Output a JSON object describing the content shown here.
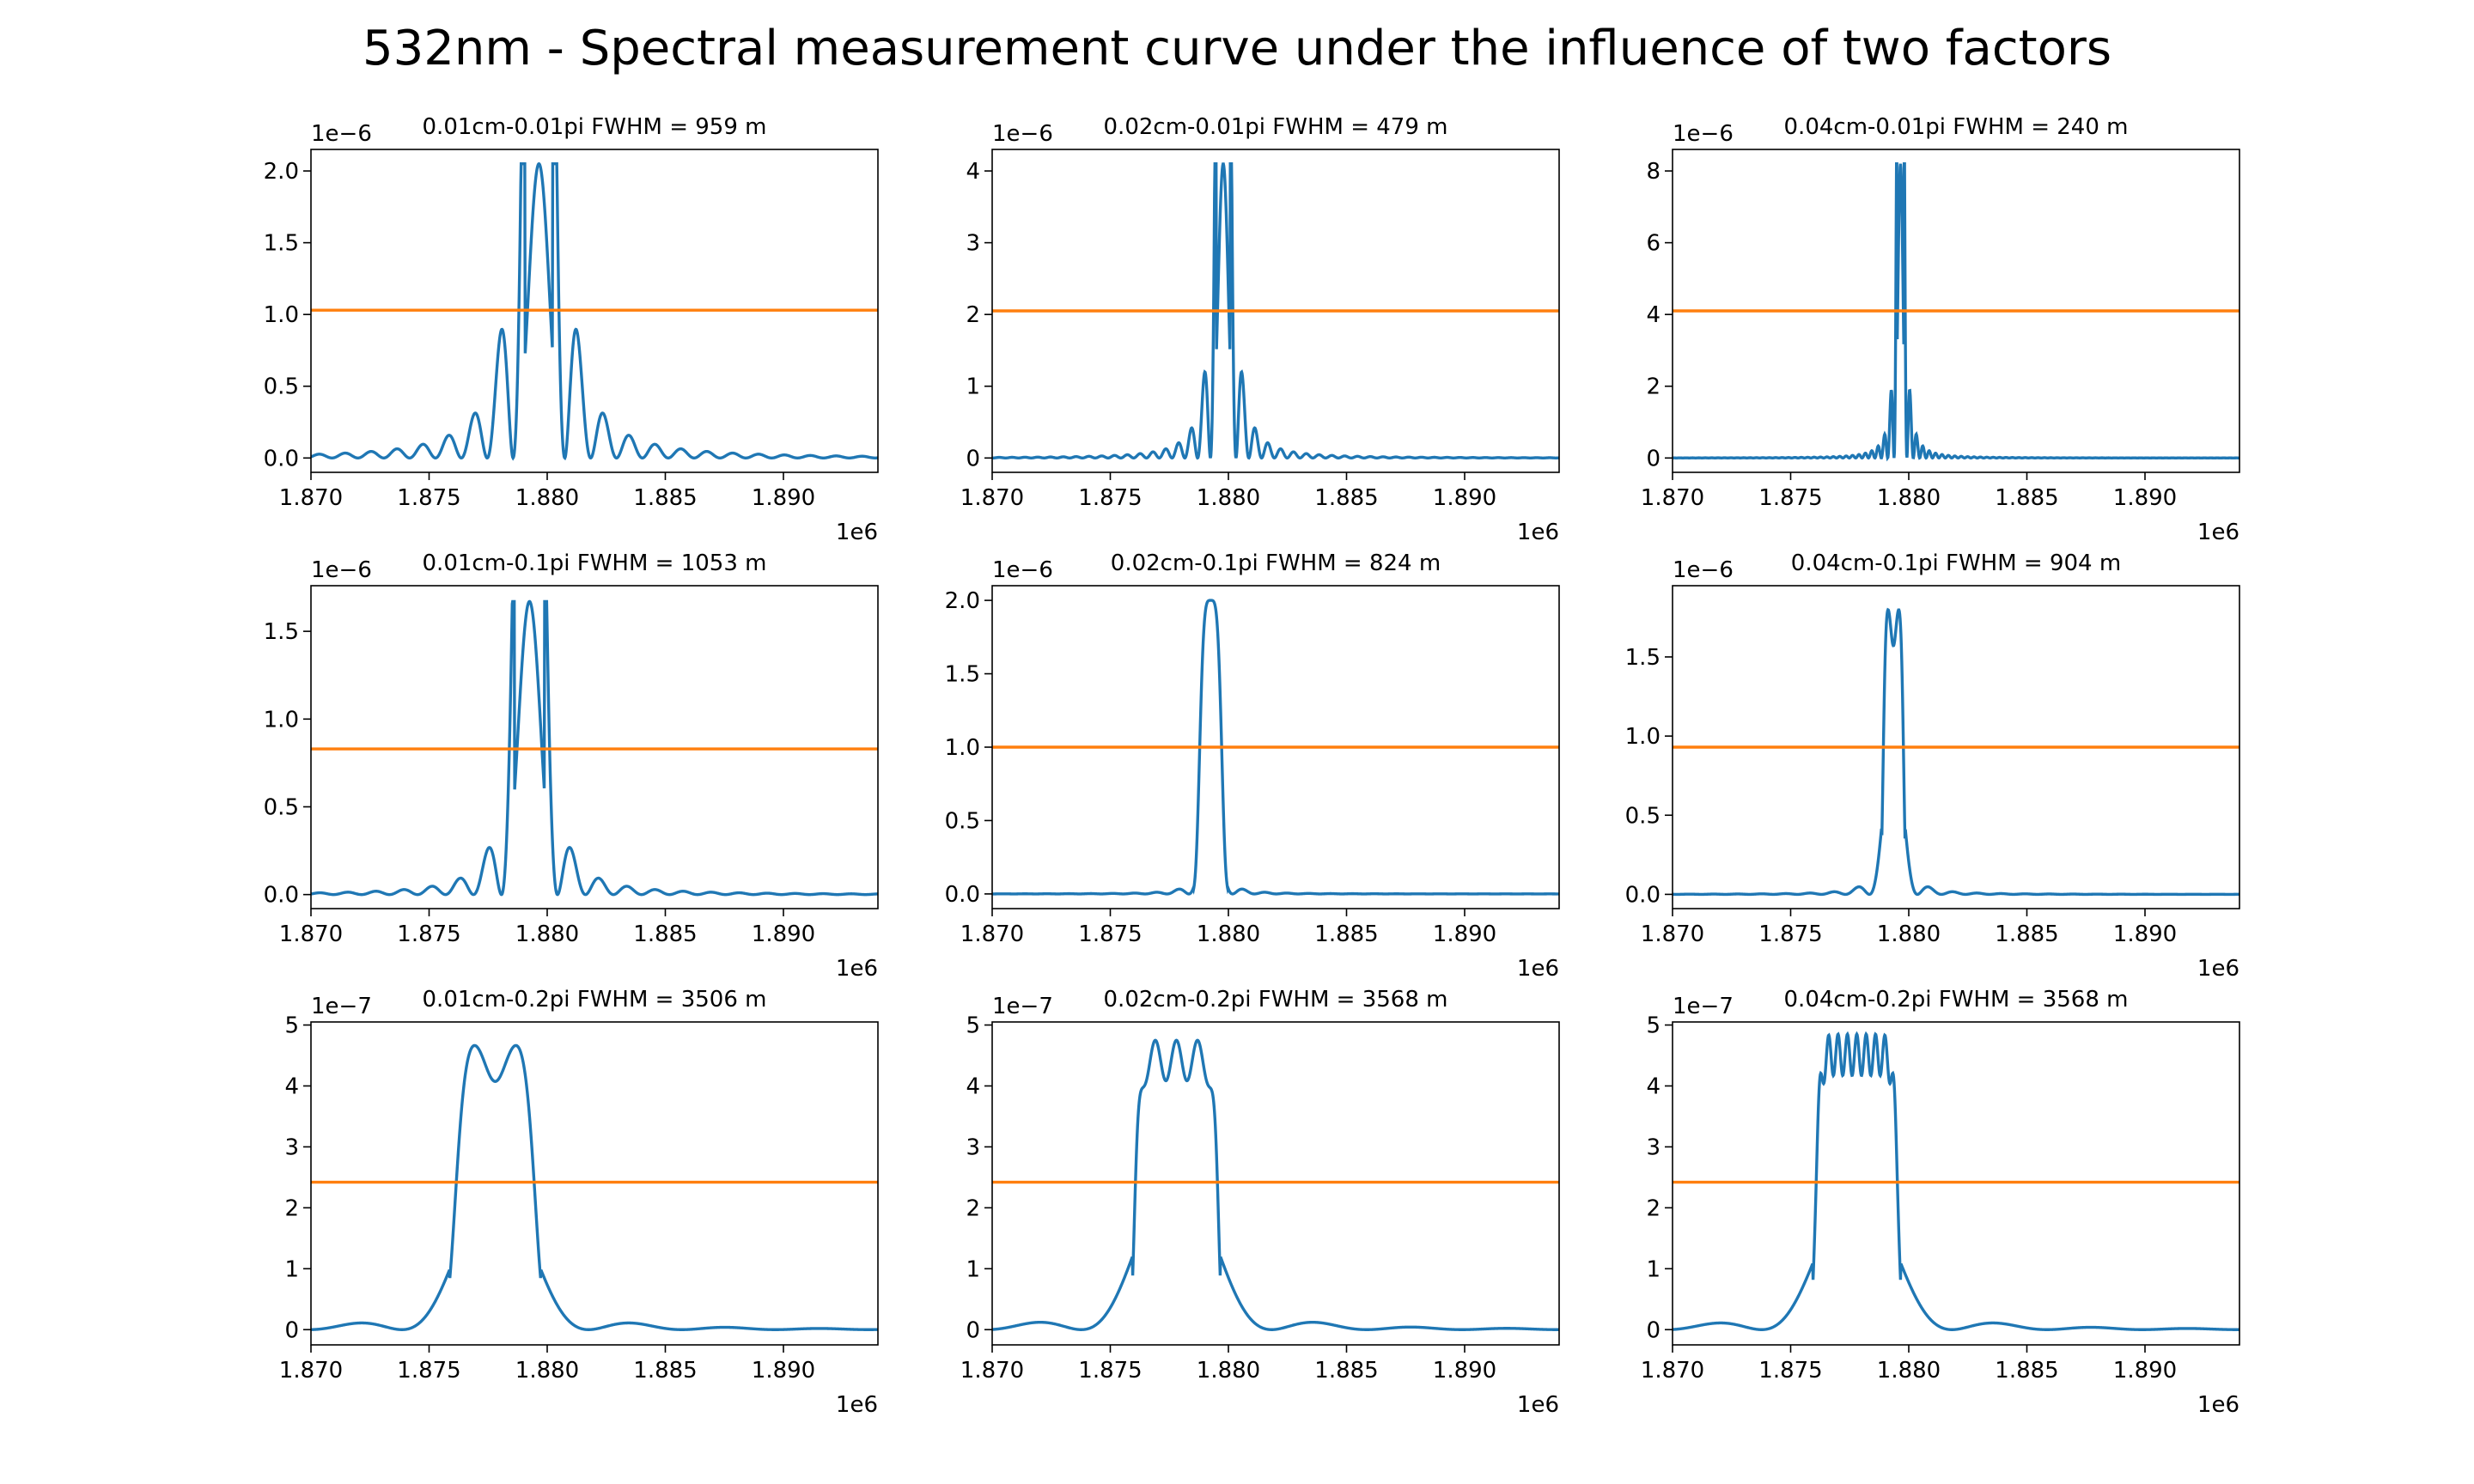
{
  "figure": {
    "title": "532nm - Spectral measurement curve under the influence of two factors",
    "series_color": "#1f77b4",
    "threshold_color": "#ff7f0e"
  },
  "chart_data": [
    {
      "type": "line",
      "subplot_title": "0.01cm-0.01pi",
      "fwhm_text": "FWHM = 959 m",
      "x_exponent_label": "1e6",
      "y_exponent_label": "1e−6",
      "xlim": [
        1.87,
        1.894
      ],
      "ylim": [
        -0.1,
        2.15
      ],
      "xticks": [
        "1.870",
        "1.875",
        "1.880",
        "1.885",
        "1.890"
      ],
      "yticks": [
        "0.0",
        "0.5",
        "1.0",
        "1.5",
        "2.0"
      ],
      "ytick_values": [
        0,
        0.5,
        1.0,
        1.5,
        2.0
      ],
      "threshold": 1.03,
      "peak": 2.05,
      "center": 1.87965,
      "width": 0.00097,
      "shape": "sinc",
      "sidelobe": 0.33
    },
    {
      "type": "line",
      "subplot_title": "0.02cm-0.01pi",
      "fwhm_text": "FWHM = 479 m",
      "x_exponent_label": "1e6",
      "y_exponent_label": "1e−6",
      "xlim": [
        1.87,
        1.894
      ],
      "ylim": [
        -0.2,
        4.3
      ],
      "xticks": [
        "1.870",
        "1.875",
        "1.880",
        "1.885",
        "1.890"
      ],
      "yticks": [
        "0",
        "1",
        "2",
        "3",
        "4"
      ],
      "ytick_values": [
        0,
        1,
        2,
        3,
        4
      ],
      "threshold": 2.05,
      "peak": 4.1,
      "center": 1.87978,
      "width": 0.00048,
      "shape": "sinc",
      "sidelobe": 0.27
    },
    {
      "type": "line",
      "subplot_title": "0.04cm-0.01pi",
      "fwhm_text": "FWHM = 240 m",
      "x_exponent_label": "1e6",
      "y_exponent_label": "1e−6",
      "xlim": [
        1.87,
        1.894
      ],
      "ylim": [
        -0.4,
        8.6
      ],
      "xticks": [
        "1.870",
        "1.875",
        "1.880",
        "1.885",
        "1.890"
      ],
      "yticks": [
        "0",
        "2",
        "4",
        "6",
        "8"
      ],
      "ytick_values": [
        0,
        2,
        4,
        6,
        8
      ],
      "threshold": 4.1,
      "peak": 8.2,
      "center": 1.87965,
      "width": 0.00024,
      "shape": "sinc",
      "sidelobe": 0.24
    },
    {
      "type": "line",
      "subplot_title": "0.01cm-0.1pi",
      "fwhm_text": "FWHM = 1053 m",
      "x_exponent_label": "1e6",
      "y_exponent_label": "1e−6",
      "xlim": [
        1.87,
        1.894
      ],
      "ylim": [
        -0.08,
        1.76
      ],
      "xticks": [
        "1.870",
        "1.875",
        "1.880",
        "1.885",
        "1.890"
      ],
      "yticks": [
        "0.0",
        "0.5",
        "1.0",
        "1.5"
      ],
      "ytick_values": [
        0,
        0.5,
        1.0,
        1.5
      ],
      "threshold": 0.83,
      "peak": 1.67,
      "center": 1.87925,
      "width": 0.00105,
      "shape": "sinc",
      "sidelobe": 0.2
    },
    {
      "type": "line",
      "subplot_title": "0.02cm-0.1pi",
      "fwhm_text": "FWHM = 824 m",
      "x_exponent_label": "1e6",
      "y_exponent_label": "1e−6",
      "xlim": [
        1.87,
        1.894
      ],
      "ylim": [
        -0.1,
        2.1
      ],
      "xticks": [
        "1.870",
        "1.875",
        "1.880",
        "1.885",
        "1.890"
      ],
      "yticks": [
        "0.0",
        "0.5",
        "1.0",
        "1.5",
        "2.0"
      ],
      "ytick_values": [
        0,
        0.5,
        1.0,
        1.5,
        2.0
      ],
      "threshold": 1.0,
      "peak": 2.0,
      "center": 1.87925,
      "width": 0.00082,
      "shape": "flat",
      "sidelobe": 0.07
    },
    {
      "type": "line",
      "subplot_title": "0.04cm-0.1pi",
      "fwhm_text": "FWHM = 904 m",
      "x_exponent_label": "1e6",
      "y_exponent_label": "1e−6",
      "xlim": [
        1.87,
        1.894
      ],
      "ylim": [
        -0.09,
        1.95
      ],
      "xticks": [
        "1.870",
        "1.875",
        "1.880",
        "1.885",
        "1.890"
      ],
      "yticks": [
        "0.0",
        "0.5",
        "1.0",
        "1.5"
      ],
      "ytick_values": [
        0,
        0.5,
        1.0,
        1.5
      ],
      "threshold": 0.93,
      "peak": 1.87,
      "center": 1.87935,
      "width": 0.0009,
      "shape": "double",
      "sidelobe": 0.09
    },
    {
      "type": "line",
      "subplot_title": "0.01cm-0.2pi",
      "fwhm_text": "FWHM = 3506 m",
      "x_exponent_label": "1e6",
      "y_exponent_label": "1e−7",
      "xlim": [
        1.87,
        1.894
      ],
      "ylim": [
        -0.25,
        5.05
      ],
      "xticks": [
        "1.870",
        "1.875",
        "1.880",
        "1.885",
        "1.890"
      ],
      "yticks": [
        "0",
        "1",
        "2",
        "3",
        "4",
        "5"
      ],
      "ytick_values": [
        0,
        1,
        2,
        3,
        4,
        5
      ],
      "threshold": 2.42,
      "peak": 4.85,
      "center": 1.8778,
      "width": 0.0035,
      "shape": "double",
      "sidelobe": 0.08
    },
    {
      "type": "line",
      "subplot_title": "0.02cm-0.2pi",
      "fwhm_text": "FWHM = 3568 m",
      "x_exponent_label": "1e6",
      "y_exponent_label": "1e−7",
      "xlim": [
        1.87,
        1.894
      ],
      "ylim": [
        -0.25,
        5.05
      ],
      "xticks": [
        "1.870",
        "1.875",
        "1.880",
        "1.885",
        "1.890"
      ],
      "yticks": [
        "0",
        "1",
        "2",
        "3",
        "4",
        "5"
      ],
      "ytick_values": [
        0,
        1,
        2,
        3,
        4,
        5
      ],
      "threshold": 2.42,
      "peak": 4.75,
      "center": 1.8778,
      "width": 0.00357,
      "shape": "ripple",
      "sidelobe": 0.09
    },
    {
      "type": "line",
      "subplot_title": "0.04cm-0.2pi",
      "fwhm_text": "FWHM = 3568 m",
      "x_exponent_label": "1e6",
      "y_exponent_label": "1e−7",
      "xlim": [
        1.87,
        1.894
      ],
      "ylim": [
        -0.25,
        5.05
      ],
      "xticks": [
        "1.870",
        "1.875",
        "1.880",
        "1.885",
        "1.890"
      ],
      "yticks": [
        "0",
        "1",
        "2",
        "3",
        "4",
        "5"
      ],
      "ytick_values": [
        0,
        1,
        2,
        3,
        4,
        5
      ],
      "threshold": 2.42,
      "peak": 4.85,
      "center": 1.8778,
      "width": 0.00357,
      "shape": "ripple",
      "sidelobe": 0.08
    }
  ]
}
